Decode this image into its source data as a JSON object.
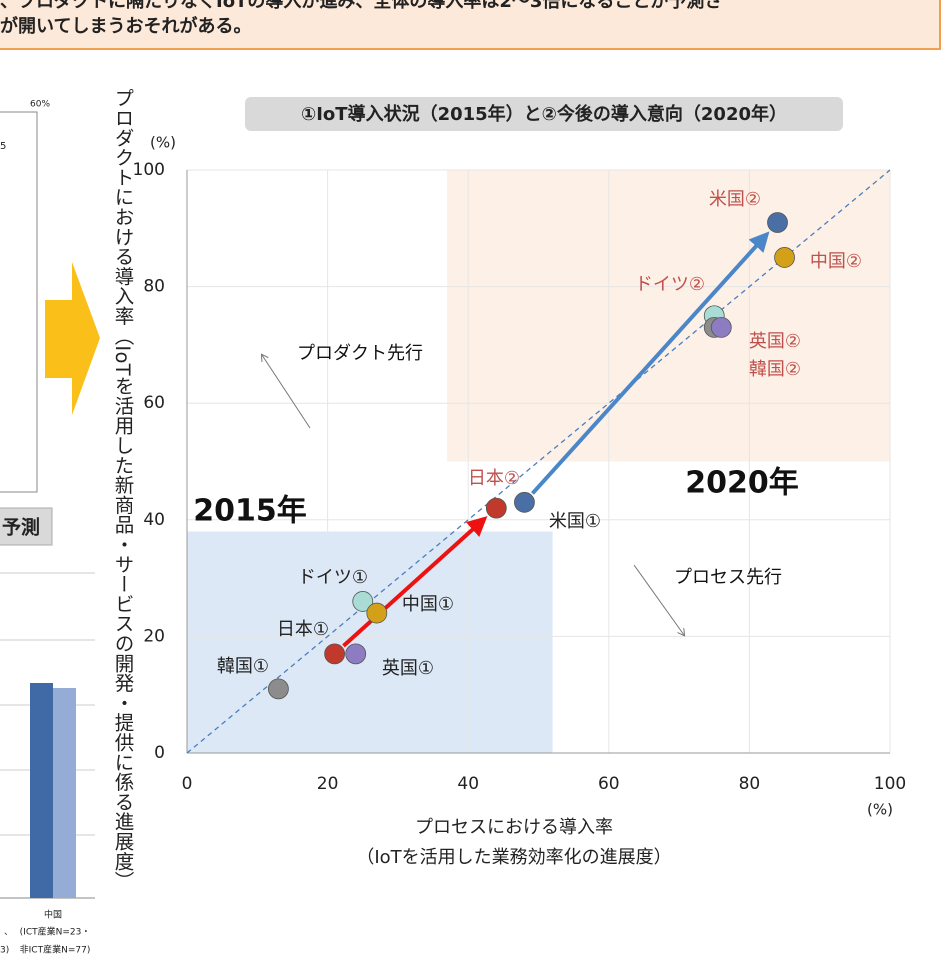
{
  "banner": {
    "lines": [
      "、プロダクトに隔たりなくIoTの導入が進み、全体の導入率は2～3倍になることが予測さ",
      "が開いてしまうおそれがある。"
    ]
  },
  "left_fragment": {
    "axis_label": "60%",
    "tick": "5",
    "box_label": "予測",
    "category": "中国",
    "category_note": [
      "(ICT産業N=23・",
      "非ICT産業N=77)"
    ],
    "cut_labels": [
      "、",
      "3)"
    ]
  },
  "chart_data": {
    "type": "scatter",
    "title": "①IoT導入状況（2015年）と②今後の導入意向（2020年）",
    "ylabel": "プロダクトにおける導入率（IoTを活用した新商品・サービスの開発・提供に係る進展度）",
    "xlabel": [
      "プロセスにおける導入率",
      "（IoTを活用した業務効率化の進展度）"
    ],
    "x_unit": "(%)",
    "y_unit": "(%)",
    "xlim": [
      0,
      100
    ],
    "ylim": [
      0,
      100
    ],
    "xticks": [
      0,
      20,
      40,
      60,
      80,
      100
    ],
    "yticks": [
      0,
      20,
      40,
      60,
      80,
      100
    ],
    "grid": true,
    "diagonal": true,
    "regions": [
      {
        "x": [
          0,
          52
        ],
        "y": [
          0,
          38
        ],
        "color": "#dce8f5"
      },
      {
        "x": [
          37,
          100
        ],
        "y": [
          50,
          100
        ],
        "color": "#fdf0e6"
      }
    ],
    "points": [
      {
        "label": "韓国①",
        "x": 13,
        "y": 11,
        "color": "#8c8c8c"
      },
      {
        "label": "日本①",
        "x": 21,
        "y": 17,
        "color": "#c0392b"
      },
      {
        "label": "英国①",
        "x": 24,
        "y": 17,
        "color": "#8e7cc3"
      },
      {
        "label": "ドイツ①",
        "x": 25,
        "y": 26,
        "color": "#a8dcd4"
      },
      {
        "label": "中国①",
        "x": 27,
        "y": 24,
        "color": "#d4a017"
      },
      {
        "label": "米国①",
        "x": 48,
        "y": 43,
        "color": "#4a6fa5"
      },
      {
        "label": "日本②",
        "x": 44,
        "y": 42,
        "color": "#c0392b"
      },
      {
        "label": "ドイツ②",
        "x": 75,
        "y": 75,
        "color": "#a8dcd4"
      },
      {
        "label": "韓国②",
        "x": 75,
        "y": 73,
        "color": "#8c8c8c"
      },
      {
        "label": "英国②",
        "x": 76,
        "y": 73,
        "color": "#8e7cc3"
      },
      {
        "label": "中国②",
        "x": 85,
        "y": 85,
        "color": "#d4a017"
      },
      {
        "label": "米国②",
        "x": 84,
        "y": 91,
        "color": "#4a6fa5"
      }
    ],
    "arrows": [
      {
        "from": 1,
        "to": 6,
        "color": "#ee1111"
      },
      {
        "from": 5,
        "to": 11,
        "color": "#4a86c8"
      }
    ],
    "annotations": [
      "プロダクト先行",
      "プロセス先行",
      "2015年",
      "2020年"
    ]
  }
}
